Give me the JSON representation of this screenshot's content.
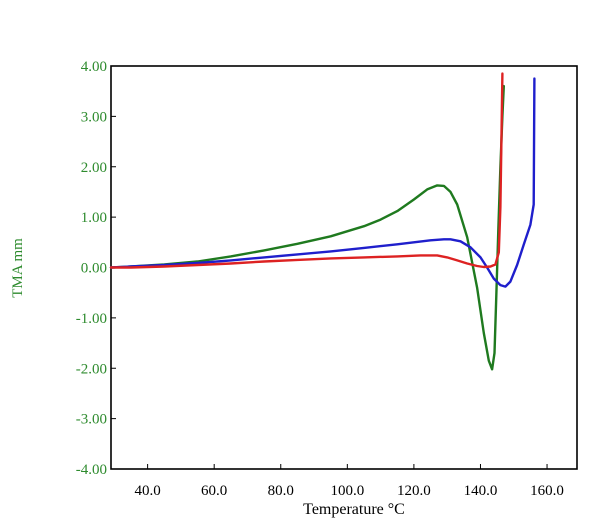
{
  "chart_data": {
    "type": "line",
    "title": "",
    "xlabel": "Temperature °C",
    "ylabel": "TMA mm",
    "xlim": [
      29,
      169
    ],
    "ylim": [
      -4,
      4
    ],
    "x_ticks": [
      40,
      60,
      80,
      100,
      120,
      140,
      160
    ],
    "x_tick_labels": [
      "40.0",
      "60.0",
      "80.0",
      "100.0",
      "120.0",
      "140.0",
      "160.0"
    ],
    "y_ticks": [
      4,
      3,
      2,
      1,
      0,
      -1,
      -2,
      -3,
      -4
    ],
    "y_tick_labels": [
      "4.00",
      "3.00",
      "2.00",
      "1.00",
      "0.00",
      "-1.00",
      "-2.00",
      "-3.00",
      "-4.00"
    ],
    "grid": false,
    "legend": "none",
    "colors": {
      "axis": "#000000",
      "ytick_text": "#2e8b2e"
    },
    "series": [
      {
        "color": "#1f7a1f",
        "x": [
          29,
          35,
          45,
          55,
          65,
          75,
          85,
          95,
          105,
          110,
          115,
          120,
          124,
          127,
          129,
          131,
          133,
          136,
          139,
          141,
          142.5,
          143.5,
          144.2,
          144.8,
          145.4,
          146,
          146.6,
          147
        ],
        "y": [
          0.0,
          0.02,
          0.06,
          0.12,
          0.22,
          0.34,
          0.47,
          0.62,
          0.82,
          0.95,
          1.12,
          1.35,
          1.55,
          1.63,
          1.62,
          1.5,
          1.25,
          0.6,
          -0.4,
          -1.3,
          -1.85,
          -2.02,
          -1.7,
          -0.5,
          0.8,
          2.0,
          3.0,
          3.6
        ]
      },
      {
        "color": "#1f1fcc",
        "x": [
          29,
          35,
          45,
          55,
          65,
          75,
          85,
          95,
          105,
          115,
          120,
          125,
          129,
          131,
          134,
          137,
          140,
          142,
          144,
          146,
          147.5,
          149,
          151,
          153,
          155,
          156,
          156.2
        ],
        "y": [
          0.0,
          0.02,
          0.05,
          0.09,
          0.14,
          0.2,
          0.26,
          0.32,
          0.39,
          0.46,
          0.5,
          0.54,
          0.56,
          0.56,
          0.52,
          0.4,
          0.2,
          0.0,
          -0.22,
          -0.35,
          -0.38,
          -0.28,
          0.05,
          0.45,
          0.85,
          1.25,
          3.75
        ]
      },
      {
        "color": "#dd2222",
        "x": [
          29,
          35,
          45,
          55,
          65,
          75,
          85,
          95,
          105,
          115,
          122,
          127,
          130,
          133,
          136,
          139,
          141,
          143,
          144.5,
          145.5,
          146,
          146.3,
          146.6
        ],
        "y": [
          0.0,
          0.0,
          0.02,
          0.05,
          0.08,
          0.12,
          0.15,
          0.18,
          0.2,
          0.22,
          0.24,
          0.24,
          0.2,
          0.14,
          0.08,
          0.03,
          0.01,
          0.02,
          0.06,
          0.3,
          1.2,
          2.5,
          3.85
        ]
      }
    ]
  }
}
